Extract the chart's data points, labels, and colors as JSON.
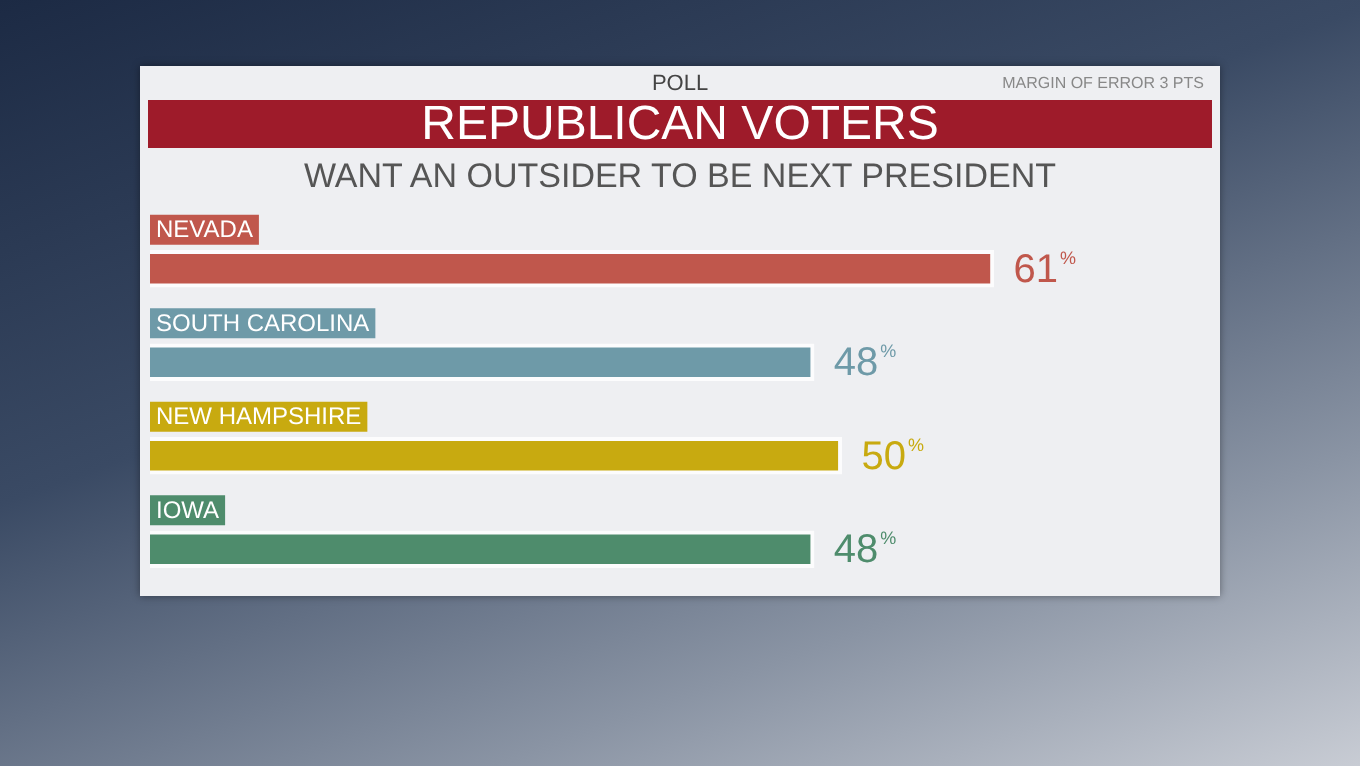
{
  "chart_data": {
    "type": "bar",
    "orientation": "horizontal",
    "title": "REPUBLICAN VOTERS",
    "subtitle": "WANT AN OUTSIDER TO BE NEXT PRESIDENT",
    "annotations": [
      "POLL",
      "MARGIN OF ERROR 3 PTS"
    ],
    "categories": [
      "NEVADA",
      "SOUTH CAROLINA",
      "NEW HAMPSHIRE",
      "IOWA"
    ],
    "values": [
      61,
      48,
      50,
      48
    ],
    "colors": [
      "#c0574c",
      "#6e9aa8",
      "#c8aa10",
      "#4e8c6c"
    ],
    "value_labels": [
      "61%",
      "48%",
      "50%",
      "48%"
    ]
  }
}
